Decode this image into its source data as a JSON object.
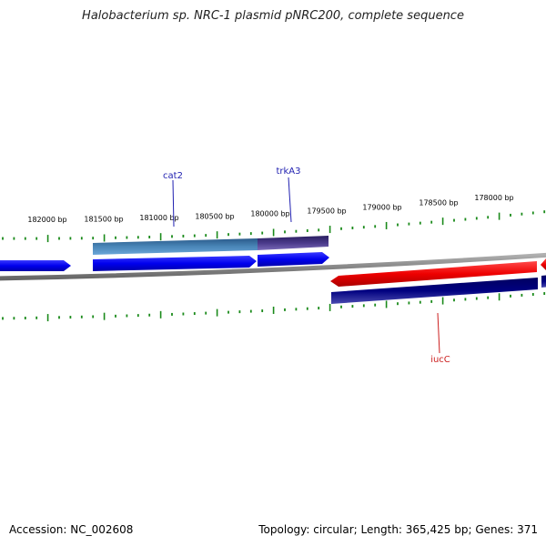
{
  "title": "Halobacterium sp. NRC-1 plasmid pNRC200, complete sequence",
  "ticks": [
    {
      "bp": 182000,
      "label": "182000 bp"
    },
    {
      "bp": 181500,
      "label": "181500 bp"
    },
    {
      "bp": 181000,
      "label": "181000 bp"
    },
    {
      "bp": 180500,
      "label": "180500 bp"
    },
    {
      "bp": 180000,
      "label": "180000 bp"
    },
    {
      "bp": 179500,
      "label": "179500 bp"
    },
    {
      "bp": 179000,
      "label": "179000 bp"
    },
    {
      "bp": 178500,
      "label": "178500 bp"
    },
    {
      "bp": 178000,
      "label": "178000 bp"
    }
  ],
  "gene_labels": [
    {
      "name": "cat2",
      "color": "#1f1fb0"
    },
    {
      "name": "trkA3",
      "color": "#1f1fb0"
    },
    {
      "name": "iucC",
      "color": "#cc1f1f"
    }
  ],
  "colors": {
    "forward_cds": "#0000ee",
    "reverse_cds": "#ee0000",
    "backbone": "#888888",
    "ticks": "#1a8a1a",
    "cog_light": "#4a86b8",
    "cog_purple": "#4a3a8a",
    "cog_navy": "#000080"
  },
  "footer": {
    "accession": "Accession: NC_002608",
    "topology": "Topology: circular",
    "length": "Length: 365,425 bp",
    "genes": "Genes: 371"
  }
}
